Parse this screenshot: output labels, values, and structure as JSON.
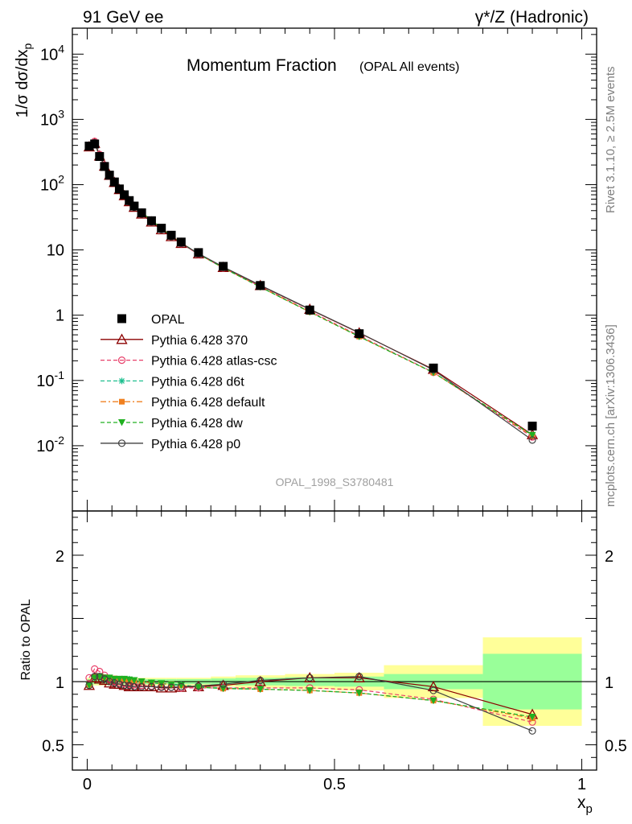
{
  "header": {
    "left": "91 GeV ee",
    "right_main": "γ*/Z (Hadronic)"
  },
  "side": {
    "rivet": "Rivet 3.1.10, ≥ 2.5M events",
    "mcplots": "mcplots.cern.ch [arXiv:1306.3436]"
  },
  "top_title": {
    "main": "Momentum Fraction",
    "sub": "(OPAL All events)"
  },
  "watermark": "OPAL_1998_S3780481",
  "ylabel_top": "1/σ dσ/dx_p",
  "ylabel_bottom": "Ratio to OPAL",
  "xlabel": "x_p",
  "yticks_top": [
    "10^-2",
    "10^-1",
    "1",
    "10",
    "10^2",
    "10^3",
    "10^4"
  ],
  "yticks_bottom": [
    "0.5",
    "1",
    "2"
  ],
  "xticks": [
    "0",
    "0.5",
    "1"
  ],
  "colors": {
    "opal": "#000000",
    "p370": "#8b0000",
    "atlas": "#e8406a",
    "d6t": "#20c090",
    "default": "#f08020",
    "dw": "#20b020",
    "p0": "#404040",
    "band_yellow": "#ffff99",
    "band_green": "#99ff99"
  },
  "chart_data": [
    {
      "type": "scatter",
      "title": "Momentum Fraction",
      "xlim": [
        -0.03,
        1.03
      ],
      "ylim": [
        0.001,
        25000
      ],
      "yscale": "log",
      "legend": "left",
      "x": [
        0.004,
        0.015,
        0.025,
        0.035,
        0.045,
        0.055,
        0.065,
        0.075,
        0.085,
        0.095,
        0.11,
        0.13,
        0.15,
        0.17,
        0.19,
        0.225,
        0.275,
        0.35,
        0.45,
        0.55,
        0.7,
        0.9
      ],
      "series": [
        {
          "name": "OPAL",
          "values": [
            390,
            420,
            270,
            190,
            140,
            110,
            86,
            70,
            57,
            47,
            37,
            28,
            21.5,
            16.8,
            13.2,
            9.1,
            5.6,
            2.85,
            1.2,
            0.52,
            0.155,
            0.02
          ]
        },
        {
          "name": "Pythia 6.428 370",
          "values": [
            380,
            430,
            275,
            192,
            139,
            108,
            84,
            68,
            55,
            45,
            35.5,
            26.8,
            20.4,
            16,
            12.6,
            8.7,
            5.4,
            2.85,
            1.23,
            0.535,
            0.148,
            0.0148
          ]
        },
        {
          "name": "Pythia 6.428 atlas-csc",
          "values": [
            400,
            460,
            290,
            200,
            143,
            110,
            85,
            69,
            56,
            46,
            36,
            27,
            20.6,
            16,
            12.5,
            8.6,
            5.3,
            2.75,
            1.15,
            0.485,
            0.133,
            0.0136
          ]
        },
        {
          "name": "Pythia 6.428 d6t",
          "values": [
            380,
            435,
            282,
            196,
            144,
            112,
            88,
            72,
            58,
            48,
            37.5,
            28.5,
            21.5,
            16.5,
            12.9,
            8.7,
            5.3,
            2.7,
            1.12,
            0.47,
            0.132,
            0.0145
          ]
        },
        {
          "name": "Pythia 6.428 default",
          "values": [
            380,
            435,
            282,
            196,
            144,
            112,
            88,
            72,
            58,
            48,
            37.5,
            28.5,
            21.5,
            16.5,
            12.9,
            8.7,
            5.3,
            2.7,
            1.12,
            0.47,
            0.132,
            0.0142
          ]
        },
        {
          "name": "Pythia 6.428 dw",
          "values": [
            378,
            432,
            280,
            196,
            144,
            112,
            88,
            72,
            58,
            48,
            37.5,
            28.5,
            21.5,
            16.5,
            12.9,
            8.7,
            5.3,
            2.7,
            1.12,
            0.47,
            0.132,
            0.0145
          ]
        },
        {
          "name": "Pythia 6.428 p0",
          "values": [
            380,
            440,
            280,
            195,
            140,
            108,
            84,
            68,
            55,
            45,
            35.5,
            27,
            20.5,
            16,
            12.7,
            8.8,
            5.5,
            2.88,
            1.24,
            0.54,
            0.145,
            0.0122
          ]
        }
      ]
    },
    {
      "type": "line",
      "ylabel": "Ratio to OPAL",
      "xlabel": "x_p",
      "xlim": [
        -0.03,
        1.03
      ],
      "ylim": [
        0.3,
        2.35
      ],
      "bands": {
        "edges": [
          0.0,
          0.01,
          0.02,
          0.03,
          0.04,
          0.05,
          0.06,
          0.07,
          0.08,
          0.09,
          0.1,
          0.12,
          0.14,
          0.16,
          0.18,
          0.2,
          0.25,
          0.3,
          0.4,
          0.5,
          0.6,
          0.8,
          1.0
        ],
        "green_half": [
          0.02,
          0.02,
          0.02,
          0.02,
          0.02,
          0.02,
          0.02,
          0.02,
          0.02,
          0.02,
          0.02,
          0.02,
          0.02,
          0.02,
          0.02,
          0.02,
          0.025,
          0.03,
          0.035,
          0.04,
          0.06,
          0.22
        ],
        "yellow_half": [
          0.03,
          0.03,
          0.03,
          0.03,
          0.03,
          0.03,
          0.03,
          0.03,
          0.03,
          0.03,
          0.03,
          0.03,
          0.03,
          0.03,
          0.03,
          0.03,
          0.04,
          0.05,
          0.06,
          0.07,
          0.13,
          0.35
        ]
      },
      "series": [
        {
          "name": "Pythia 6.428 370",
          "values": [
            0.97,
            1.03,
            1.02,
            1.01,
            0.99,
            0.98,
            0.98,
            0.97,
            0.96,
            0.96,
            0.96,
            0.96,
            0.95,
            0.95,
            0.955,
            0.96,
            0.97,
            1.0,
            1.03,
            1.03,
            0.96,
            0.74
          ]
        },
        {
          "name": "Pythia 6.428 atlas-csc",
          "values": [
            1.03,
            1.1,
            1.08,
            1.05,
            1.02,
            1.0,
            0.99,
            0.985,
            0.98,
            0.975,
            0.97,
            0.965,
            0.96,
            0.955,
            0.95,
            0.95,
            0.95,
            0.95,
            0.95,
            0.935,
            0.86,
            0.68
          ]
        },
        {
          "name": "Pythia 6.428 d6t",
          "values": [
            0.97,
            1.03,
            1.04,
            1.03,
            1.03,
            1.02,
            1.02,
            1.02,
            1.02,
            1.01,
            1.0,
            0.99,
            0.985,
            0.98,
            0.975,
            0.96,
            0.95,
            0.94,
            0.93,
            0.91,
            0.85,
            0.72
          ]
        },
        {
          "name": "Pythia 6.428 default",
          "values": [
            0.975,
            1.035,
            1.045,
            1.035,
            1.03,
            1.025,
            1.02,
            1.02,
            1.015,
            1.01,
            1.0,
            0.99,
            0.985,
            0.98,
            0.97,
            0.96,
            0.945,
            0.94,
            0.93,
            0.91,
            0.85,
            0.71
          ]
        },
        {
          "name": "Pythia 6.428 dw",
          "values": [
            0.97,
            1.03,
            1.04,
            1.03,
            1.03,
            1.02,
            1.02,
            1.02,
            1.015,
            1.01,
            1.0,
            0.99,
            0.985,
            0.975,
            0.97,
            0.955,
            0.945,
            0.94,
            0.93,
            0.91,
            0.85,
            0.72
          ]
        },
        {
          "name": "Pythia 6.428 p0",
          "values": [
            0.97,
            1.04,
            1.04,
            1.02,
            1.0,
            0.99,
            0.98,
            0.97,
            0.97,
            0.96,
            0.96,
            0.96,
            0.955,
            0.955,
            0.96,
            0.965,
            0.98,
            1.01,
            1.03,
            1.04,
            0.93,
            0.61
          ]
        }
      ]
    }
  ]
}
